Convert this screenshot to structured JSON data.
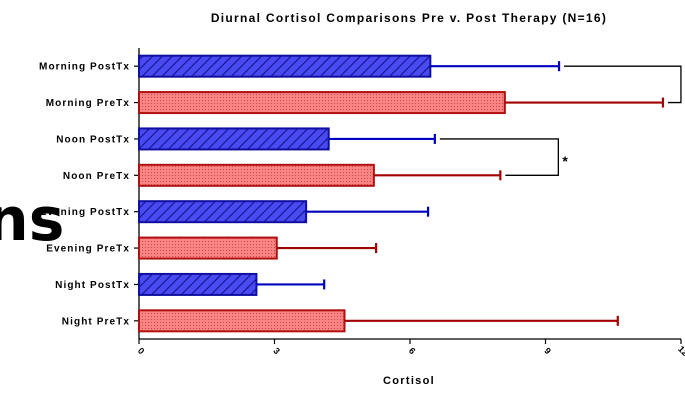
{
  "chart_data": {
    "type": "bar",
    "orientation": "horizontal",
    "title": "Diurnal Cortisol Comparisons Pre v. Post Therapy (N=16)",
    "xlabel": "Cortisol",
    "ylabel": "",
    "xlim": [
      0,
      12
    ],
    "x_ticks": [
      "0",
      "3",
      "6",
      "9",
      "12"
    ],
    "grid": false,
    "legend": "none",
    "error_bars": "one-sided, right",
    "categories": [
      "Morning PostTx",
      "Morning PreTx",
      "Noon PostTx",
      "Noon PreTx",
      "Evening PostTx",
      "Evening PreTx",
      "Night PostTx",
      "Night PreTx"
    ],
    "values": [
      6.45,
      8.1,
      4.2,
      5.2,
      3.7,
      3.05,
      2.6,
      4.55
    ],
    "error": [
      2.85,
      3.5,
      2.35,
      2.8,
      2.7,
      2.2,
      1.5,
      6.05
    ],
    "group": [
      "PostTx",
      "PreTx",
      "PostTx",
      "PreTx",
      "PostTx",
      "PreTx",
      "PostTx",
      "PreTx"
    ],
    "significance": [
      {
        "between": [
          "Morning PostTx",
          "Morning PreTx"
        ],
        "label": ""
      },
      {
        "between": [
          "Noon PostTx",
          "Noon PreTx"
        ],
        "label": "*"
      }
    ],
    "colors": {
      "PostTx_fill": "#4040f0",
      "PostTx_edge": "#1010a0",
      "PostTx_error": "#0000c0",
      "PreTx_fill": "#f88080",
      "PreTx_edge": "#b01010",
      "PreTx_error": "#a00000"
    }
  },
  "overlay_text": "ns"
}
